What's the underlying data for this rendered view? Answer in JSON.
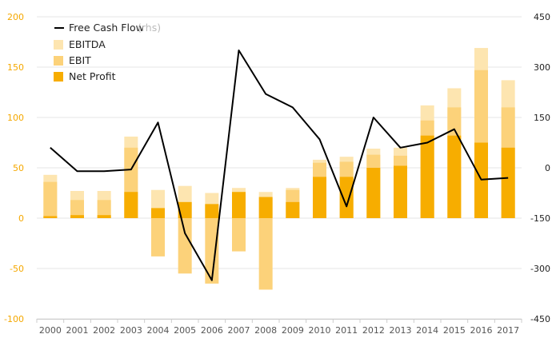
{
  "chart_data": {
    "type": "bar",
    "categories": [
      "2000",
      "2001",
      "2002",
      "2003",
      "2004",
      "2005",
      "2006",
      "2007",
      "2008",
      "2009",
      "2010",
      "2011",
      "2012",
      "2013",
      "2014",
      "2015",
      "2016",
      "2017"
    ],
    "series": [
      {
        "name": "EBITDA",
        "values": [
          43,
          27,
          27,
          81,
          28,
          32,
          25,
          30,
          26,
          30,
          58,
          61,
          69,
          70,
          112,
          129,
          169,
          137
        ]
      },
      {
        "name": "EBIT",
        "values": [
          36,
          18,
          18,
          70,
          -38,
          -55,
          -65,
          -33,
          -71,
          28,
          55,
          56,
          63,
          62,
          97,
          110,
          147,
          110
        ]
      },
      {
        "name": "Net Profit",
        "values": [
          2,
          3,
          3,
          26,
          10,
          16,
          14,
          26,
          21,
          16,
          41,
          41,
          50,
          52,
          82,
          82,
          75,
          70
        ]
      },
      {
        "name": "Free Cash Flow",
        "axis": "right",
        "values": [
          60,
          -10,
          -10,
          -5,
          135,
          -195,
          -335,
          350,
          220,
          180,
          85,
          -115,
          150,
          60,
          75,
          115,
          -35,
          -30
        ]
      }
    ],
    "ylim": [
      -100,
      200
    ],
    "y2lim": [
      -450,
      450
    ],
    "yticks": [
      "200",
      "150",
      "100",
      "50",
      "0",
      "-50",
      "-100"
    ],
    "y2ticks": [
      "450",
      "300",
      "150",
      "0",
      "-150",
      "-300",
      "-450"
    ],
    "legend": [
      {
        "label": "Free Cash Flow",
        "note": "(rhs)",
        "kind": "line"
      },
      {
        "label": "EBITDA",
        "kind": "swatch"
      },
      {
        "label": "EBIT",
        "kind": "swatch"
      },
      {
        "label": "Net Profit",
        "kind": "swatch"
      }
    ],
    "colors": {
      "EBITDA": "#fde5b0",
      "EBIT": "#fcd27a",
      "Net Profit": "#f7ad00",
      "Free Cash Flow": "#000000",
      "left_axis_text": "#f5a800",
      "grid": "#e6e6e6"
    },
    "grid": true,
    "legend_position": "top-left"
  }
}
